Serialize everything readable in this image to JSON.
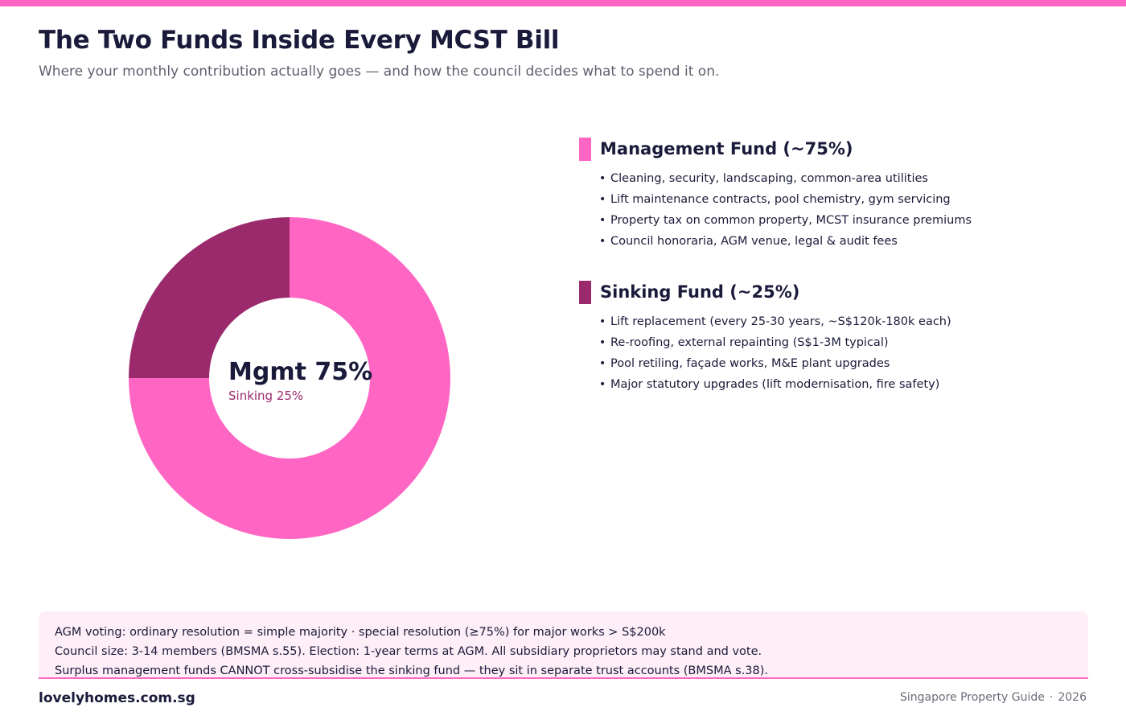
{
  "header": {
    "title": "The Two Funds Inside Every MCST Bill",
    "subtitle": "Where your monthly contribution actually goes — and how the council decides what to spend it on."
  },
  "colors": {
    "accent": "#ff66c4",
    "management": "#ff66c4",
    "sinking": "#9b2a6d",
    "text": "#1a1a3a",
    "note_background": "#fdeef7"
  },
  "chart_data": {
    "type": "pie",
    "style": "donut",
    "slices": [
      {
        "label": "Management Fund",
        "value": 75,
        "color": "#ff66c4"
      },
      {
        "label": "Sinking Fund",
        "value": 25,
        "color": "#9b2a6d"
      }
    ],
    "center_label": "Mgmt 75%",
    "center_sublabel": "Sinking 25%"
  },
  "funds": [
    {
      "title": "Management Fund (~75%)",
      "color": "#ff66c4",
      "items": [
        "Cleaning, security, landscaping, common-area utilities",
        "Lift maintenance contracts, pool chemistry, gym servicing",
        "Property tax on common property, MCST insurance premiums",
        "Council honoraria, AGM venue, legal & audit fees"
      ]
    },
    {
      "title": "Sinking Fund (~25%)",
      "color": "#9b2a6d",
      "items": [
        "Lift replacement (every 25-30 years, ~S$120k-180k each)",
        "Re-roofing, external repainting (S$1-3M typical)",
        "Pool retiling, façade works, M&E plant upgrades",
        "Major statutory upgrades (lift modernisation, fire safety)"
      ]
    }
  ],
  "notes": [
    "AGM voting:  ordinary resolution = simple majority   ·   special resolution (≥75%) for major works > S$200k",
    "Council size: 3-14 members (BMSMA s.55).  Election: 1-year terms at AGM.  All subsidiary proprietors may stand and vote.",
    "Surplus management funds CANNOT cross-subsidise the sinking fund — they sit in separate trust accounts (BMSMA s.38)."
  ],
  "footer": {
    "brand": "lovelyhomes.com.sg",
    "guide": "Singapore Property Guide",
    "separator": "·",
    "year": "2026"
  }
}
